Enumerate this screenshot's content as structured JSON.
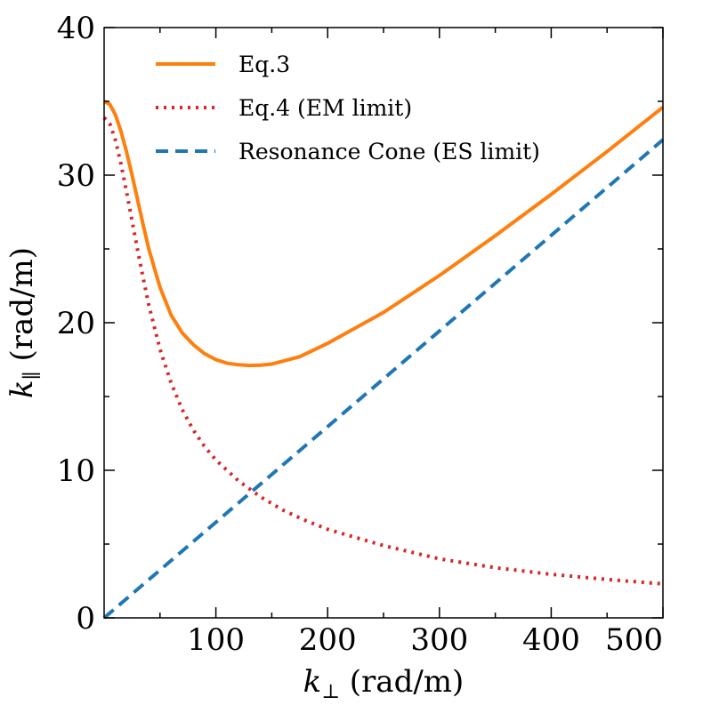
{
  "chart_data": {
    "type": "line",
    "title": "",
    "xlabel": {
      "symbol": "k",
      "subscript": "⊥",
      "unit": " (rad/m)"
    },
    "ylabel": {
      "symbol": "k",
      "subscript": "∥",
      "unit": " (rad/m)"
    },
    "xlim": [
      0,
      500
    ],
    "ylim": [
      0,
      40
    ],
    "xticks": [
      100,
      200,
      300,
      400,
      500
    ],
    "yticks": [
      0,
      10,
      20,
      30,
      40
    ],
    "xtick_labels": [
      "100",
      "200",
      "300",
      "400",
      "500"
    ],
    "ytick_labels": [
      "0",
      "10",
      "20",
      "30",
      "40"
    ],
    "legend_position": "top-left",
    "grid": false,
    "series": [
      {
        "name": "Eq.3",
        "color": "#ff7f0e",
        "style": "solid",
        "x": [
          0,
          5,
          10,
          15,
          20,
          25,
          30,
          35,
          40,
          50,
          60,
          70,
          80,
          90,
          100,
          110,
          120,
          130,
          140,
          150,
          175,
          200,
          250,
          300,
          350,
          400,
          450,
          500
        ],
        "y": [
          35,
          34.8,
          34.1,
          33.0,
          31.6,
          30.0,
          28.3,
          26.6,
          25.0,
          22.4,
          20.5,
          19.3,
          18.5,
          17.9,
          17.5,
          17.25,
          17.15,
          17.1,
          17.12,
          17.2,
          17.7,
          18.6,
          20.7,
          23.2,
          25.9,
          28.7,
          31.6,
          34.6
        ]
      },
      {
        "name": "Eq.4 (EM limit)",
        "color": "#d62728",
        "style": "dotted",
        "x": [
          0,
          5,
          10,
          15,
          20,
          25,
          30,
          35,
          40,
          50,
          60,
          70,
          80,
          90,
          100,
          120,
          140,
          160,
          180,
          200,
          250,
          300,
          350,
          400,
          450,
          500
        ],
        "y": [
          33.9,
          33.5,
          32.4,
          30.8,
          28.9,
          26.9,
          24.9,
          23.0,
          21.2,
          18.2,
          15.9,
          14.1,
          12.7,
          11.6,
          10.7,
          9.3,
          8.2,
          7.3,
          6.6,
          6.0,
          4.9,
          4.0,
          3.4,
          2.95,
          2.6,
          2.3
        ]
      },
      {
        "name": "Resonance Cone (ES limit)",
        "color": "#1f77b4",
        "style": "dashed",
        "x": [
          0,
          500
        ],
        "y": [
          0,
          32.4
        ]
      }
    ]
  }
}
